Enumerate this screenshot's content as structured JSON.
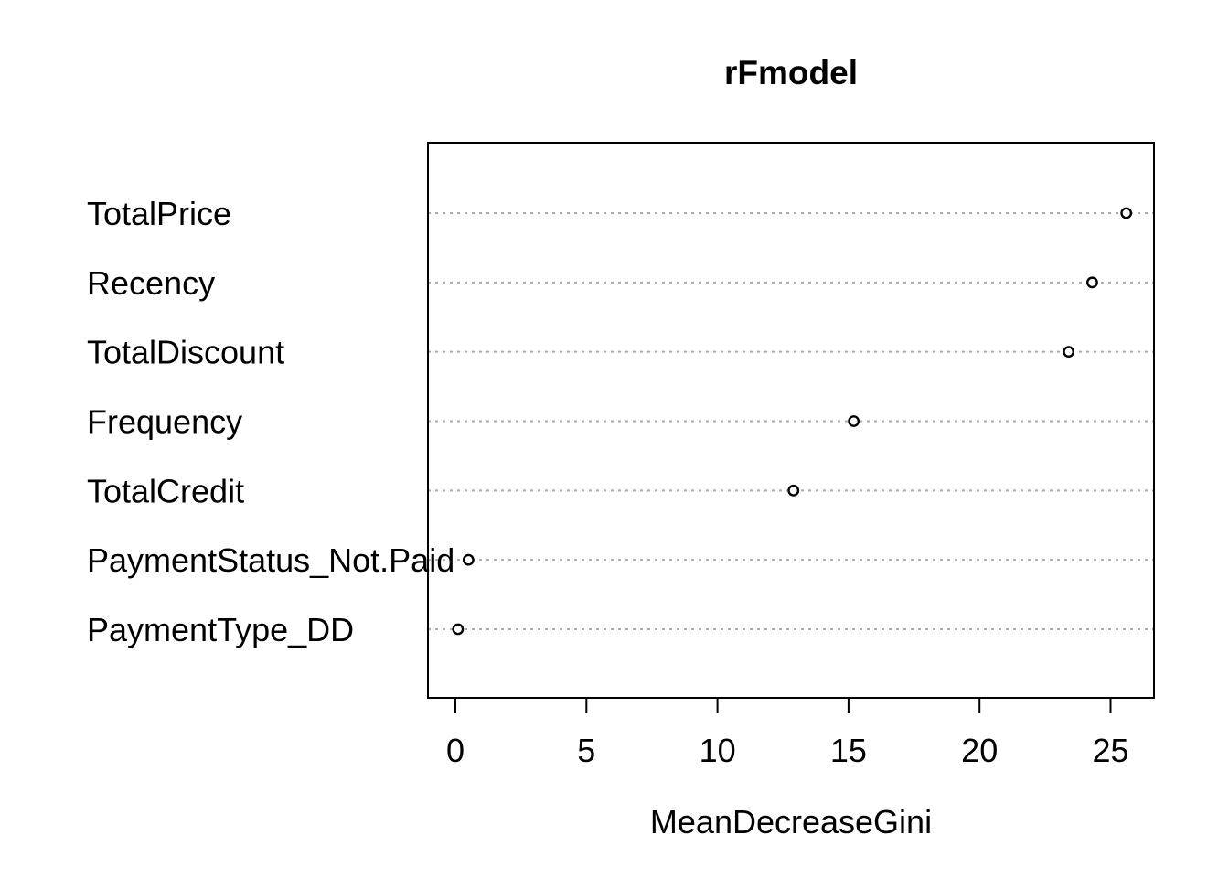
{
  "chart_data": {
    "type": "scatter",
    "subtype": "dotchart-variable-importance",
    "title": "rFmodel",
    "xlabel": "MeanDecreaseGini",
    "ylabel": "",
    "categories": [
      "TotalPrice",
      "Recency",
      "TotalDiscount",
      "Frequency",
      "TotalCredit",
      "PaymentStatus_Not.Paid",
      "PaymentType_DD"
    ],
    "values": [
      25.6,
      24.3,
      23.4,
      15.2,
      12.9,
      0.5,
      0.1
    ],
    "x_ticks": [
      0,
      5,
      10,
      15,
      20,
      25
    ],
    "xlim": [
      -1.05,
      26.65
    ],
    "grid": "horizontal dotted line per category",
    "legend": "none",
    "marker": "open-circle",
    "colors": {
      "foreground": "#000000",
      "marker_stroke": "#000000",
      "marker_fill": "#ffffff",
      "gridline": "#ababab",
      "background": "#ffffff"
    }
  }
}
